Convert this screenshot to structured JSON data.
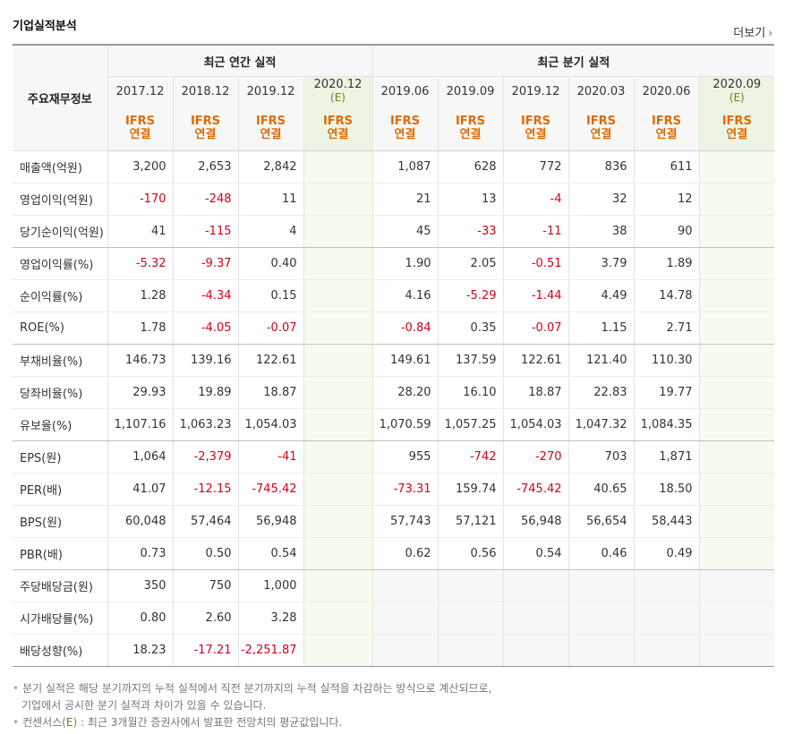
{
  "title": "기업실적분석",
  "more_label": "더보기",
  "row_header": "주요재무정보",
  "group_annual": "최근 연간 실적",
  "group_quarter": "최근 분기 실적",
  "annual_periods": [
    "2017.12",
    "2018.12",
    "2019.12",
    "2020.12"
  ],
  "annual_est_label": "(E)",
  "quarter_periods": [
    "2019.06",
    "2019.09",
    "2019.12",
    "2020.03",
    "2020.06",
    "2020.09"
  ],
  "quarter_est_label": "(E)",
  "std_top": "IFRS",
  "std_bottom": "연결",
  "rows": [
    {
      "label": "매출액(억원)",
      "a": [
        "3,200",
        "2,653",
        "2,842",
        ""
      ],
      "q": [
        "1,087",
        "628",
        "772",
        "836",
        "611",
        ""
      ]
    },
    {
      "label": "영업이익(억원)",
      "a": [
        "-170",
        "-248",
        "11",
        ""
      ],
      "q": [
        "21",
        "13",
        "-4",
        "32",
        "12",
        ""
      ]
    },
    {
      "label": "당기순이익(억원)",
      "a": [
        "41",
        "-115",
        "4",
        ""
      ],
      "q": [
        "45",
        "-33",
        "-11",
        "38",
        "90",
        ""
      ]
    },
    {
      "label": "영업이익률(%)",
      "a": [
        "-5.32",
        "-9.37",
        "0.40",
        ""
      ],
      "q": [
        "1.90",
        "2.05",
        "-0.51",
        "3.79",
        "1.89",
        ""
      ]
    },
    {
      "label": "순이익률(%)",
      "a": [
        "1.28",
        "-4.34",
        "0.15",
        ""
      ],
      "q": [
        "4.16",
        "-5.29",
        "-1.44",
        "4.49",
        "14.78",
        ""
      ]
    },
    {
      "label": "ROE(%)",
      "a": [
        "1.78",
        "-4.05",
        "-0.07",
        ""
      ],
      "q": [
        "-0.84",
        "0.35",
        "-0.07",
        "1.15",
        "2.71",
        ""
      ]
    },
    {
      "label": "부채비율(%)",
      "a": [
        "146.73",
        "139.16",
        "122.61",
        ""
      ],
      "q": [
        "149.61",
        "137.59",
        "122.61",
        "121.40",
        "110.30",
        ""
      ]
    },
    {
      "label": "당좌비율(%)",
      "a": [
        "29.93",
        "19.89",
        "18.87",
        ""
      ],
      "q": [
        "28.20",
        "16.10",
        "18.87",
        "22.83",
        "19.77",
        ""
      ]
    },
    {
      "label": "유보율(%)",
      "a": [
        "1,107.16",
        "1,063.23",
        "1,054.03",
        ""
      ],
      "q": [
        "1,070.59",
        "1,057.25",
        "1,054.03",
        "1,047.32",
        "1,084.35",
        ""
      ]
    },
    {
      "label": "EPS(원)",
      "a": [
        "1,064",
        "-2,379",
        "-41",
        ""
      ],
      "q": [
        "955",
        "-742",
        "-270",
        "703",
        "1,871",
        ""
      ]
    },
    {
      "label": "PER(배)",
      "a": [
        "41.07",
        "-12.15",
        "-745.42",
        ""
      ],
      "q": [
        "-73.31",
        "159.74",
        "-745.42",
        "40.65",
        "18.50",
        ""
      ]
    },
    {
      "label": "BPS(원)",
      "a": [
        "60,048",
        "57,464",
        "56,948",
        ""
      ],
      "q": [
        "57,743",
        "57,121",
        "56,948",
        "56,654",
        "58,443",
        ""
      ]
    },
    {
      "label": "PBR(배)",
      "a": [
        "0.73",
        "0.50",
        "0.54",
        ""
      ],
      "q": [
        "0.62",
        "0.56",
        "0.54",
        "0.46",
        "0.49",
        ""
      ]
    },
    {
      "label": "주당배당금(원)",
      "a": [
        "350",
        "750",
        "1,000",
        ""
      ],
      "q": null
    },
    {
      "label": "시가배당률(%)",
      "a": [
        "0.80",
        "2.60",
        "3.28",
        ""
      ],
      "q": null
    },
    {
      "label": "배당성향(%)",
      "a": [
        "18.23",
        "-17.21",
        "-2,251.87",
        ""
      ],
      "q": null
    }
  ],
  "notes": {
    "line1": "분기 실적은 해당 분기까지의 누적 실적에서 직전 분기까지의 누적 실적을 차감하는 방식으로 계산되므로,",
    "line2": "기업에서 공시한 분기 실적과 차이가 있을 수 있습니다.",
    "line3_prefix": "컨센서스(",
    "line3_e": "E",
    "line3_suffix": ") : 최근 3개월간 증권사에서 발표한 전망치의 평균값입니다."
  },
  "colors": {
    "negative": "#d0021b",
    "ifrs": "#e06b00",
    "estimate_bg": "#eef4e4"
  }
}
